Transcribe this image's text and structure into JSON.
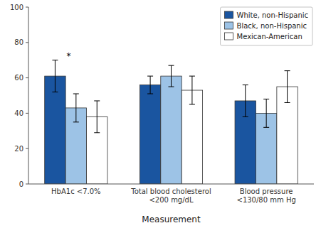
{
  "chart_data": {
    "type": "bar",
    "categories": [
      "HbA1c <7.0%",
      "Total blood cholesterol\n<200 mg/dL",
      "Blood pressure\n<130/80 mm Hg"
    ],
    "series": [
      {
        "name": "White, non-Hispanic",
        "color": "#1A55A0",
        "values": [
          61,
          56,
          47
        ],
        "errors": [
          9,
          5,
          9
        ]
      },
      {
        "name": "Black, non-Hispanic",
        "color": "#9DC3E6",
        "values": [
          43,
          61,
          40
        ],
        "errors": [
          8,
          6,
          8
        ]
      },
      {
        "name": "Mexican-American",
        "color": "#FFFFFF",
        "values": [
          38,
          53,
          55
        ],
        "errors": [
          9,
          8,
          9
        ]
      }
    ],
    "xlabel": "Measurement",
    "ylim": [
      0,
      100
    ],
    "yticks": [
      0,
      20,
      40,
      60,
      80,
      100
    ],
    "grid": false,
    "legend": "upper right",
    "annotations": [
      {
        "text": "*",
        "series": "White, non-Hispanic",
        "category": "HbA1c <7.0%"
      }
    ]
  }
}
